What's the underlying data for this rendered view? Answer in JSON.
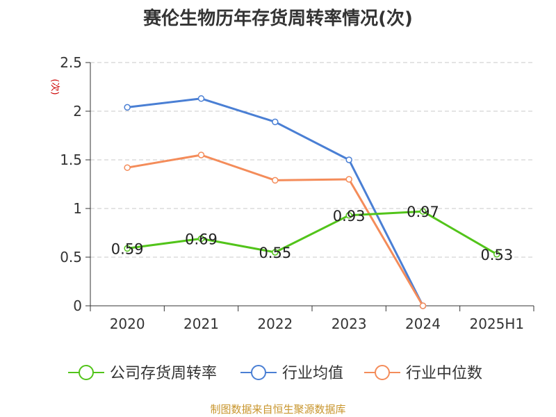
{
  "chart_data": {
    "type": "line",
    "title": "赛伦生物历年存货周转率情况(次)",
    "ylabel": "(次)",
    "xlabel": "",
    "categories": [
      "2020",
      "2021",
      "2022",
      "2023",
      "2024",
      "2025H1"
    ],
    "ylim": [
      0,
      2.5
    ],
    "yticks": [
      0,
      0.5,
      1,
      1.5,
      2,
      2.5
    ],
    "ytick_labels": [
      "0",
      "0.5",
      "1",
      "1.5",
      "2",
      "2.5"
    ],
    "grid": true,
    "legend_position": "bottom",
    "series": [
      {
        "name": "公司存货周转率",
        "color": "#52c41a",
        "values": [
          0.59,
          0.69,
          0.55,
          0.93,
          0.97,
          0.53
        ],
        "labels": [
          "0.59",
          "0.69",
          "0.55",
          "0.93",
          "0.97",
          "0.53"
        ]
      },
      {
        "name": "行业均值",
        "color": "#4a7fd4",
        "values": [
          2.04,
          2.13,
          1.89,
          1.5,
          0,
          null
        ]
      },
      {
        "name": "行业中位数",
        "color": "#f48c5a",
        "values": [
          1.42,
          1.55,
          1.29,
          1.3,
          0,
          null
        ]
      }
    ]
  },
  "ylabel_color": "#cc0000",
  "source_note": {
    "text": "制图数据来自恒生聚源数据库",
    "color": "#c8952c"
  }
}
